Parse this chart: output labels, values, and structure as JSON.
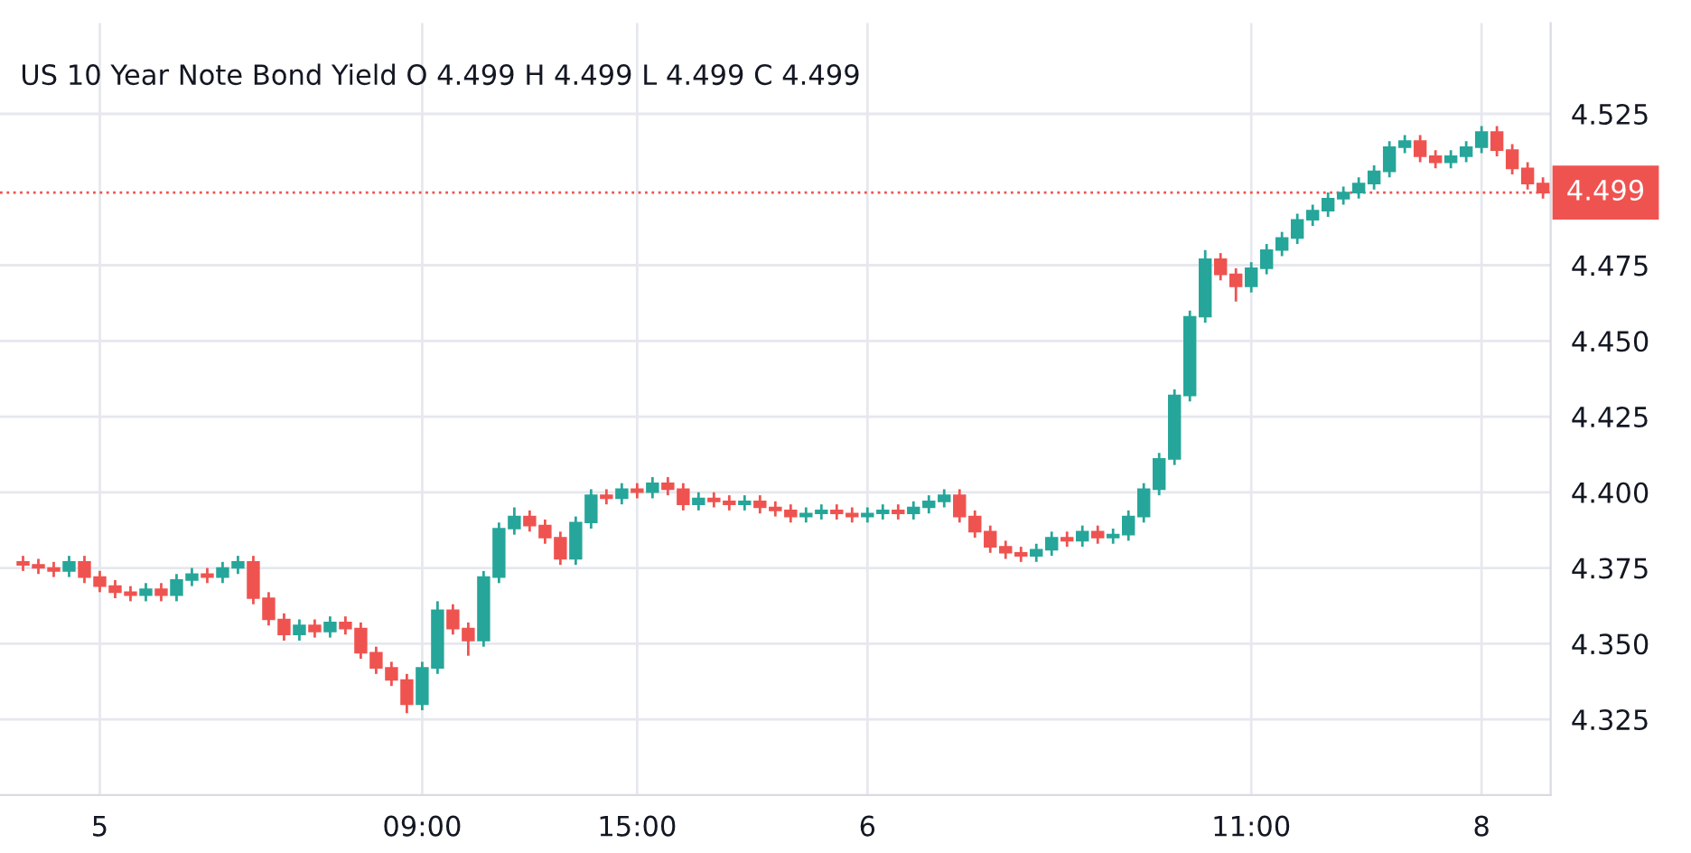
{
  "chart_data": {
    "type": "candlestick",
    "title": "US 10 Year Note Bond Yield O 4.499 H 4.499 L 4.499 C 4.499",
    "categories": [
      null,
      null,
      null,
      null,
      null,
      "5",
      null,
      null,
      null,
      null,
      null,
      null,
      null,
      null,
      null,
      null,
      null,
      null,
      null,
      null,
      null,
      null,
      null,
      null,
      null,
      null,
      "09:00",
      null,
      null,
      null,
      null,
      null,
      null,
      null,
      null,
      null,
      null,
      null,
      null,
      null,
      "15:00",
      null,
      null,
      null,
      null,
      null,
      null,
      null,
      null,
      null,
      null,
      null,
      null,
      null,
      null,
      "6",
      null,
      null,
      null,
      null,
      null,
      null,
      null,
      null,
      null,
      null,
      null,
      null,
      null,
      null,
      null,
      null,
      null,
      null,
      null,
      null,
      null,
      null,
      null,
      null,
      "11:00",
      null,
      null,
      null,
      null,
      null,
      null,
      null,
      null,
      null,
      null,
      null,
      null,
      null,
      null,
      "8",
      null,
      null,
      null,
      null
    ],
    "ohlc": [
      [
        4.377,
        4.379,
        4.374,
        4.376
      ],
      [
        4.376,
        4.378,
        4.373,
        4.375
      ],
      [
        4.375,
        4.377,
        4.372,
        4.374
      ],
      [
        4.374,
        4.379,
        4.372,
        4.377
      ],
      [
        4.377,
        4.379,
        4.37,
        4.372
      ],
      [
        4.372,
        4.374,
        4.367,
        4.369
      ],
      [
        4.369,
        4.371,
        4.365,
        4.367
      ],
      [
        4.367,
        4.369,
        4.364,
        4.366
      ],
      [
        4.366,
        4.37,
        4.364,
        4.368
      ],
      [
        4.368,
        4.37,
        4.364,
        4.366
      ],
      [
        4.366,
        4.373,
        4.364,
        4.371
      ],
      [
        4.371,
        4.375,
        4.369,
        4.373
      ],
      [
        4.373,
        4.375,
        4.37,
        4.372
      ],
      [
        4.372,
        4.377,
        4.37,
        4.375
      ],
      [
        4.375,
        4.379,
        4.373,
        4.377
      ],
      [
        4.377,
        4.379,
        4.363,
        4.365
      ],
      [
        4.365,
        4.367,
        4.356,
        4.358
      ],
      [
        4.358,
        4.36,
        4.351,
        4.353
      ],
      [
        4.353,
        4.358,
        4.351,
        4.356
      ],
      [
        4.356,
        4.358,
        4.352,
        4.354
      ],
      [
        4.354,
        4.359,
        4.352,
        4.357
      ],
      [
        4.357,
        4.359,
        4.353,
        4.355
      ],
      [
        4.355,
        4.357,
        4.345,
        4.347
      ],
      [
        4.347,
        4.349,
        4.34,
        4.342
      ],
      [
        4.342,
        4.344,
        4.336,
        4.338
      ],
      [
        4.338,
        4.34,
        4.327,
        4.33
      ],
      [
        4.33,
        4.344,
        4.328,
        4.342
      ],
      [
        4.342,
        4.364,
        4.34,
        4.361
      ],
      [
        4.361,
        4.363,
        4.353,
        4.355
      ],
      [
        4.355,
        4.357,
        4.346,
        4.351
      ],
      [
        4.351,
        4.374,
        4.349,
        4.372
      ],
      [
        4.372,
        4.39,
        4.37,
        4.388
      ],
      [
        4.388,
        4.395,
        4.386,
        4.392
      ],
      [
        4.392,
        4.394,
        4.387,
        4.389
      ],
      [
        4.389,
        4.391,
        4.383,
        4.385
      ],
      [
        4.385,
        4.387,
        4.376,
        4.378
      ],
      [
        4.378,
        4.392,
        4.376,
        4.39
      ],
      [
        4.39,
        4.401,
        4.388,
        4.399
      ],
      [
        4.399,
        4.401,
        4.396,
        4.398
      ],
      [
        4.398,
        4.403,
        4.396,
        4.401
      ],
      [
        4.401,
        4.403,
        4.398,
        4.4
      ],
      [
        4.4,
        4.405,
        4.398,
        4.403
      ],
      [
        4.403,
        4.405,
        4.399,
        4.401
      ],
      [
        4.401,
        4.403,
        4.394,
        4.396
      ],
      [
        4.396,
        4.4,
        4.394,
        4.398
      ],
      [
        4.398,
        4.4,
        4.395,
        4.397
      ],
      [
        4.397,
        4.399,
        4.394,
        4.396
      ],
      [
        4.396,
        4.399,
        4.394,
        4.397
      ],
      [
        4.397,
        4.399,
        4.393,
        4.395
      ],
      [
        4.395,
        4.397,
        4.392,
        4.394
      ],
      [
        4.394,
        4.396,
        4.39,
        4.392
      ],
      [
        4.392,
        4.395,
        4.39,
        4.393
      ],
      [
        4.393,
        4.396,
        4.391,
        4.394
      ],
      [
        4.394,
        4.396,
        4.391,
        4.393
      ],
      [
        4.393,
        4.395,
        4.39,
        4.392
      ],
      [
        4.392,
        4.395,
        4.39,
        4.393
      ],
      [
        4.393,
        4.396,
        4.391,
        4.394
      ],
      [
        4.394,
        4.396,
        4.391,
        4.393
      ],
      [
        4.393,
        4.397,
        4.391,
        4.395
      ],
      [
        4.395,
        4.399,
        4.393,
        4.397
      ],
      [
        4.397,
        4.401,
        4.395,
        4.399
      ],
      [
        4.399,
        4.401,
        4.39,
        4.392
      ],
      [
        4.392,
        4.394,
        4.385,
        4.387
      ],
      [
        4.387,
        4.389,
        4.38,
        4.382
      ],
      [
        4.382,
        4.384,
        4.378,
        4.38
      ],
      [
        4.38,
        4.382,
        4.377,
        4.379
      ],
      [
        4.379,
        4.383,
        4.377,
        4.381
      ],
      [
        4.381,
        4.387,
        4.379,
        4.385
      ],
      [
        4.385,
        4.387,
        4.382,
        4.384
      ],
      [
        4.384,
        4.389,
        4.382,
        4.387
      ],
      [
        4.387,
        4.389,
        4.383,
        4.385
      ],
      [
        4.385,
        4.388,
        4.383,
        4.386
      ],
      [
        4.386,
        4.394,
        4.384,
        4.392
      ],
      [
        4.392,
        4.403,
        4.39,
        4.401
      ],
      [
        4.401,
        4.413,
        4.399,
        4.411
      ],
      [
        4.411,
        4.434,
        4.409,
        4.432
      ],
      [
        4.432,
        4.46,
        4.43,
        4.458
      ],
      [
        4.458,
        4.48,
        4.456,
        4.477
      ],
      [
        4.477,
        4.479,
        4.47,
        4.472
      ],
      [
        4.472,
        4.474,
        4.463,
        4.468
      ],
      [
        4.468,
        4.476,
        4.466,
        4.474
      ],
      [
        4.474,
        4.482,
        4.472,
        4.48
      ],
      [
        4.48,
        4.486,
        4.478,
        4.484
      ],
      [
        4.484,
        4.492,
        4.482,
        4.49
      ],
      [
        4.49,
        4.495,
        4.488,
        4.493
      ],
      [
        4.493,
        4.499,
        4.491,
        4.497
      ],
      [
        4.497,
        4.501,
        4.495,
        4.499
      ],
      [
        4.499,
        4.504,
        4.497,
        4.502
      ],
      [
        4.502,
        4.508,
        4.5,
        4.506
      ],
      [
        4.506,
        4.516,
        4.504,
        4.514
      ],
      [
        4.514,
        4.518,
        4.512,
        4.516
      ],
      [
        4.516,
        4.518,
        4.509,
        4.511
      ],
      [
        4.511,
        4.513,
        4.507,
        4.509
      ],
      [
        4.509,
        4.513,
        4.507,
        4.511
      ],
      [
        4.511,
        4.516,
        4.509,
        4.514
      ],
      [
        4.514,
        4.521,
        4.512,
        4.519
      ],
      [
        4.519,
        4.521,
        4.511,
        4.513
      ],
      [
        4.513,
        4.515,
        4.505,
        4.507
      ],
      [
        4.507,
        4.509,
        4.5,
        4.502
      ],
      [
        4.502,
        4.504,
        4.497,
        4.499
      ]
    ],
    "colors": [
      "#ef5350",
      "#ef5350",
      "#ef5350",
      "#26a69a",
      "#ef5350",
      "#ef5350",
      "#ef5350",
      "#ef5350",
      "#26a69a",
      "#ef5350",
      "#26a69a",
      "#26a69a",
      "#ef5350",
      "#26a69a",
      "#26a69a",
      "#ef5350",
      "#ef5350",
      "#ef5350",
      "#26a69a",
      "#ef5350",
      "#26a69a",
      "#ef5350",
      "#ef5350",
      "#ef5350",
      "#ef5350",
      "#ef5350",
      "#26a69a",
      "#26a69a",
      "#ef5350",
      "#ef5350",
      "#26a69a",
      "#26a69a",
      "#26a69a",
      "#ef5350",
      "#ef5350",
      "#ef5350",
      "#26a69a",
      "#26a69a",
      "#ef5350",
      "#26a69a",
      "#ef5350",
      "#26a69a",
      "#ef5350",
      "#ef5350",
      "#26a69a",
      "#ef5350",
      "#ef5350",
      "#26a69a",
      "#ef5350",
      "#ef5350",
      "#ef5350",
      "#26a69a",
      "#26a69a",
      "#ef5350",
      "#ef5350",
      "#26a69a",
      "#26a69a",
      "#ef5350",
      "#26a69a",
      "#26a69a",
      "#26a69a",
      "#ef5350",
      "#ef5350",
      "#ef5350",
      "#ef5350",
      "#ef5350",
      "#26a69a",
      "#26a69a",
      "#ef5350",
      "#26a69a",
      "#ef5350",
      "#26a69a",
      "#26a69a",
      "#26a69a",
      "#26a69a",
      "#26a69a",
      "#26a69a",
      "#26a69a",
      "#ef5350",
      "#ef5350",
      "#26a69a",
      "#26a69a",
      "#26a69a",
      "#26a69a",
      "#26a69a",
      "#26a69a",
      "#26a69a",
      "#26a69a",
      "#26a69a",
      "#26a69a",
      "#26a69a",
      "#ef5350",
      "#ef5350",
      "#26a69a",
      "#26a69a",
      "#26a69a",
      "#ef5350",
      "#ef5350",
      "#ef5350",
      "#ef5350"
    ],
    "ylim": [
      4.3,
      4.555
    ],
    "yticks": [
      4.325,
      {
        "value": 4.35,
        "label": "4.350"
      },
      4.375,
      {
        "value": 4.4,
        "label": "4.400"
      },
      4.425,
      {
        "value": 4.45,
        "label": "4.450"
      },
      4.475,
      4.525
    ],
    "ref_lines": [
      {
        "axis": "y",
        "value": 4.499,
        "label": "4.499",
        "color": "#ef5350",
        "line_style": "dotted"
      }
    ],
    "grid": true
  }
}
